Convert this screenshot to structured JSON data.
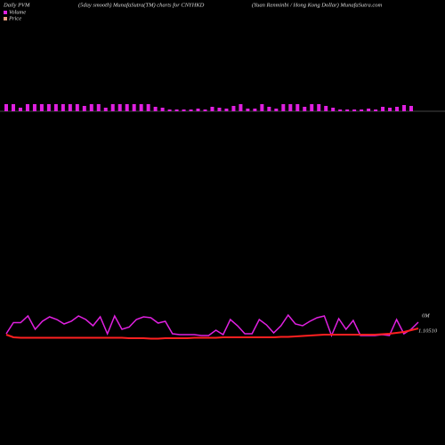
{
  "header": {
    "left": "Daily PVM",
    "center": "(5day smooth) MunafaSutra(TM) charts for CNYHKD",
    "right": "(Yuan Renminbi  / Hong Kong Dollar) MunafaSutra.com"
  },
  "chart_data": [
    {
      "type": "bar",
      "name": "Volume",
      "color": "#e020e0",
      "ylim": [
        0,
        10
      ],
      "values": [
        8,
        8,
        4,
        8,
        8,
        8,
        8,
        8,
        8,
        8,
        8,
        6,
        8,
        8,
        4,
        8,
        8,
        8,
        8,
        8,
        8,
        5,
        4,
        2,
        2,
        2,
        2,
        3,
        2,
        5,
        4,
        3,
        6,
        8,
        3,
        3,
        8,
        5,
        3,
        8,
        8,
        8,
        5,
        8,
        8,
        6,
        4,
        2,
        2,
        2,
        2,
        3,
        2,
        5,
        4,
        5,
        7,
        6
      ]
    },
    {
      "type": "line",
      "ylim": [
        0,
        100
      ],
      "annotations": [
        "0M",
        "1.10510"
      ],
      "series": [
        {
          "color": "#e020e0",
          "values": [
            30,
            55,
            55,
            70,
            40,
            58,
            68,
            62,
            52,
            58,
            70,
            62,
            48,
            68,
            30,
            70,
            40,
            45,
            62,
            68,
            66,
            54,
            58,
            30,
            28,
            28,
            28,
            26,
            26,
            38,
            28,
            62,
            48,
            30,
            30,
            62,
            50,
            32,
            48,
            72,
            52,
            48,
            58,
            66,
            70,
            26,
            64,
            40,
            60,
            26,
            26,
            26,
            28,
            26,
            62,
            30,
            40,
            56
          ]
        },
        {
          "name": "Price",
          "color": "#ff2020",
          "values": [
            28,
            22,
            21,
            21,
            21,
            21,
            21,
            21,
            21,
            21,
            21,
            21,
            21,
            21,
            21,
            21,
            21,
            20,
            20,
            20,
            19,
            19,
            20,
            20,
            20,
            20,
            21,
            21,
            21,
            21,
            22,
            22,
            22,
            22,
            22,
            22,
            22,
            22,
            23,
            23,
            24,
            25,
            26,
            27,
            28,
            28,
            28,
            28,
            28,
            28,
            28,
            28,
            29,
            30,
            32,
            34,
            38,
            42
          ]
        }
      ]
    }
  ]
}
